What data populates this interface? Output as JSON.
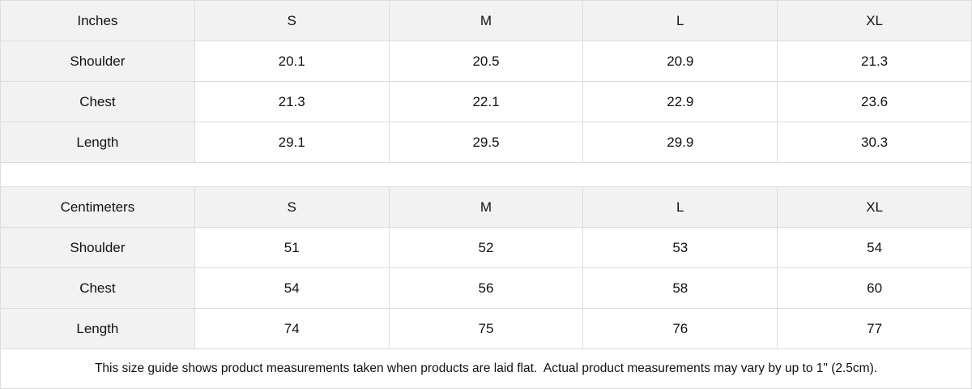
{
  "inches": {
    "header": [
      "Inches",
      "S",
      "M",
      "L",
      "XL"
    ],
    "rows": [
      [
        "Shoulder",
        "20.1",
        "20.5",
        "20.9",
        "21.3"
      ],
      [
        "Chest",
        "21.3",
        "22.1",
        "22.9",
        "23.6"
      ],
      [
        "Length",
        "29.1",
        "29.5",
        "29.9",
        "30.3"
      ]
    ]
  },
  "centimeters": {
    "header": [
      "Centimeters",
      "S",
      "M",
      "L",
      "XL"
    ],
    "rows": [
      [
        "Shoulder",
        "51",
        "52",
        "53",
        "54"
      ],
      [
        "Chest",
        "54",
        "56",
        "58",
        "60"
      ],
      [
        "Length",
        "74",
        "75",
        "76",
        "77"
      ]
    ]
  },
  "note": "This size guide shows product measurements taken when products are laid flat.  Actual product measurements may vary by up to 1\" (2.5cm).",
  "colors": {
    "header_bg": "#f2f2f2",
    "border": "#dcdcdc"
  }
}
